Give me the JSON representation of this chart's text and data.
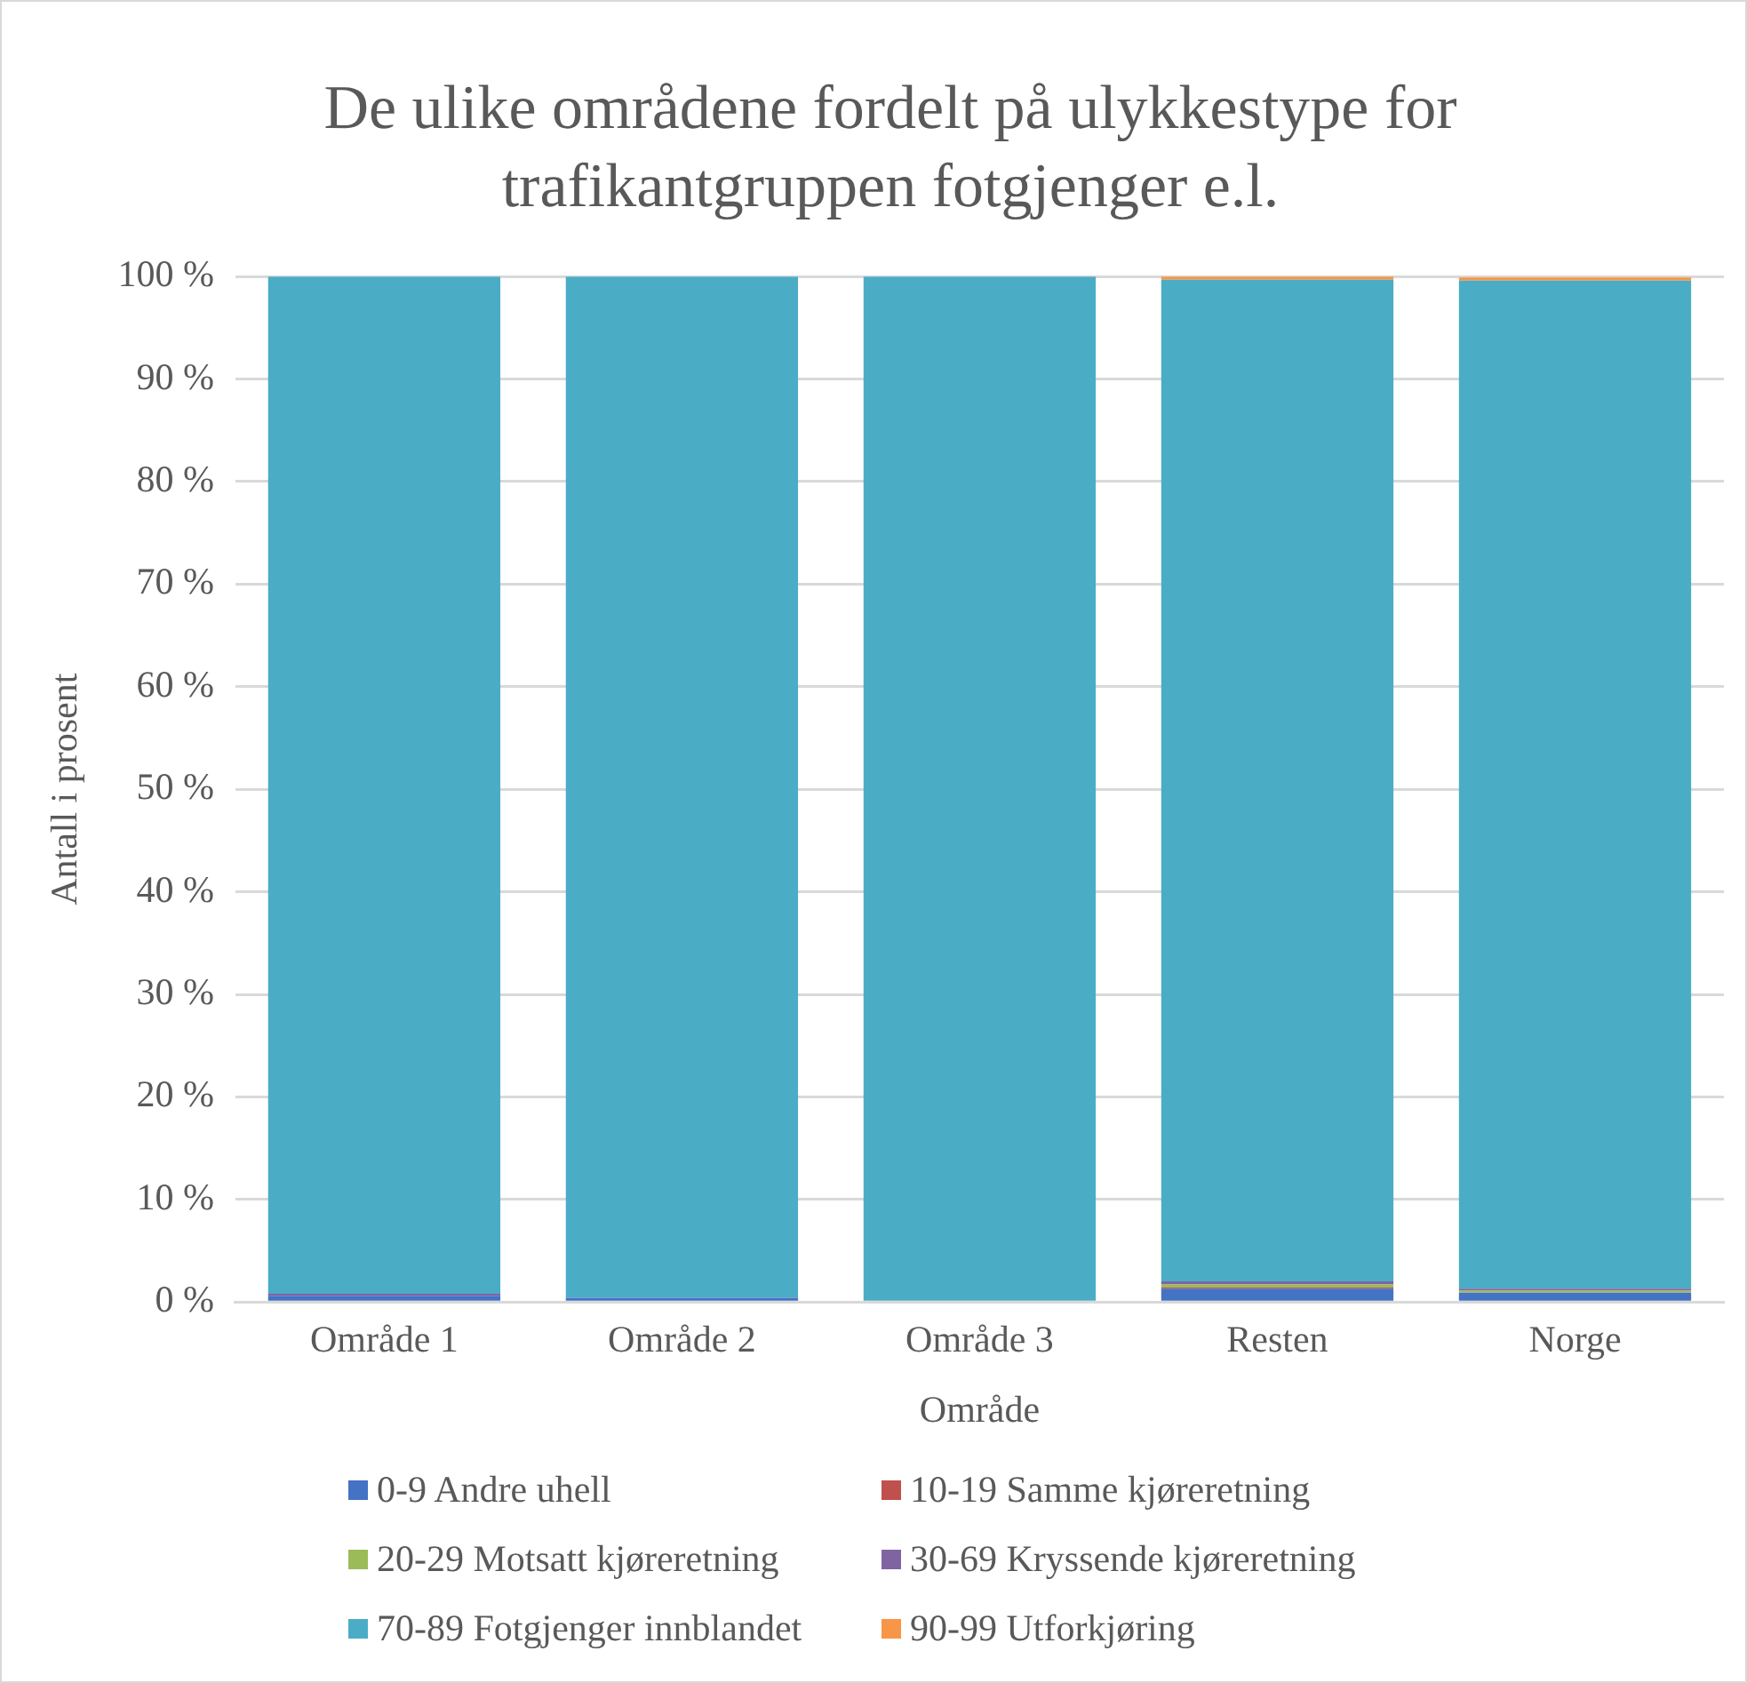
{
  "chart_data": {
    "type": "bar",
    "title": "De ulike områdene fordelt på ulykkestype for trafikantgruppen fotgjenger e.l.",
    "xlabel": "Område",
    "ylabel": "Antall i prosent",
    "categories": [
      "Område 1",
      "Område 2",
      "Område 3",
      "Resten",
      "Norge"
    ],
    "stacked": true,
    "ylim": [
      0,
      100
    ],
    "yticks": [
      {
        "value": 0,
        "label": "0 %"
      },
      {
        "value": 10,
        "label": "10 %"
      },
      {
        "value": 20,
        "label": "20 %"
      },
      {
        "value": 30,
        "label": "30 %"
      },
      {
        "value": 40,
        "label": "40 %"
      },
      {
        "value": 50,
        "label": "50 %"
      },
      {
        "value": 60,
        "label": "60 %"
      },
      {
        "value": 70,
        "label": "70 %"
      },
      {
        "value": 80,
        "label": "80 %"
      },
      {
        "value": 90,
        "label": "90 %"
      },
      {
        "value": 100,
        "label": "100 %"
      }
    ],
    "grid": "y",
    "legend": "bottom",
    "series": [
      {
        "name": "0-9 Andre uhell",
        "color": "#4472c4",
        "values": [
          0.6,
          0.4,
          0,
          1.3,
          0.9
        ]
      },
      {
        "name": "10-19 Samme kjøreretning",
        "color": "#c0504d",
        "values": [
          0,
          0,
          0,
          0.1,
          null
        ]
      },
      {
        "name": "20-29 Motsatt kjøreretning",
        "color": "#9bbb59",
        "values": [
          0,
          0,
          0,
          0.3,
          0.2
        ]
      },
      {
        "name": "30-69 Kryssende kjøreretning",
        "color": "#8064a2",
        "values": [
          0.2,
          0,
          0,
          0.3,
          0.2
        ]
      },
      {
        "name": "70-89 Fotgjenger innblandet",
        "color": "#4bacc6",
        "values": [
          99.2,
          99.6,
          100,
          97.7,
          98.3
        ]
      },
      {
        "name": "90-99 Utforkjøring",
        "color": "#f79646",
        "values": [
          0,
          0,
          0,
          0.3,
          0.3
        ]
      }
    ]
  }
}
